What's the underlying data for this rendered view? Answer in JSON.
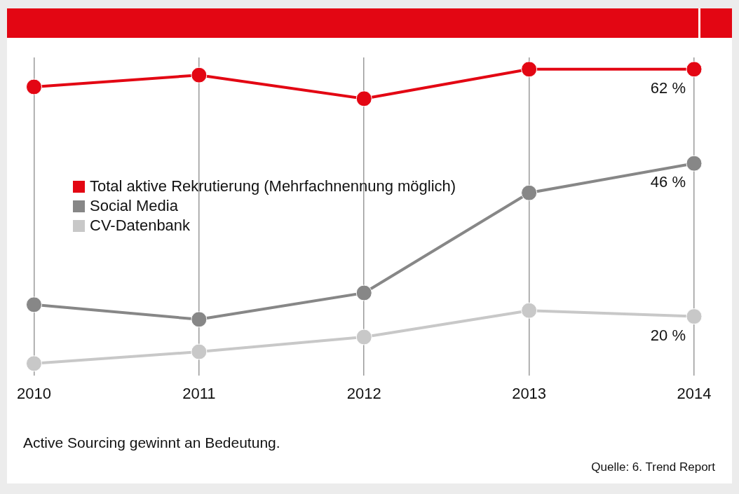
{
  "chart_data": {
    "type": "line",
    "categories": [
      "2010",
      "2011",
      "2012",
      "2013",
      "2014"
    ],
    "series": [
      {
        "name": "Total aktive Rekrutierung (Mehrfachnennung möglich)",
        "color": "#e30613",
        "values": [
          59,
          61,
          57,
          62,
          62
        ],
        "value_labels": [
          null,
          null,
          null,
          null,
          "62 %"
        ]
      },
      {
        "name": "Social Media",
        "color": "#878787",
        "values": [
          22,
          19.5,
          24,
          41,
          46
        ],
        "value_labels": [
          null,
          null,
          null,
          null,
          "46 %"
        ]
      },
      {
        "name": "CV-Datenbank",
        "color": "#c8c8c8",
        "values": [
          12,
          14,
          16.5,
          21,
          20
        ],
        "value_labels": [
          null,
          null,
          null,
          null,
          "20 %"
        ]
      }
    ],
    "ylim": [
      10,
      64
    ],
    "tick_labels": "x",
    "grid": "x",
    "legend": "left",
    "marker": "circle",
    "line_style": "solid",
    "annotations": [
      "Active Sourcing gewinnt an Bedeutung.",
      "Quelle: 6. Trend Report"
    ]
  }
}
